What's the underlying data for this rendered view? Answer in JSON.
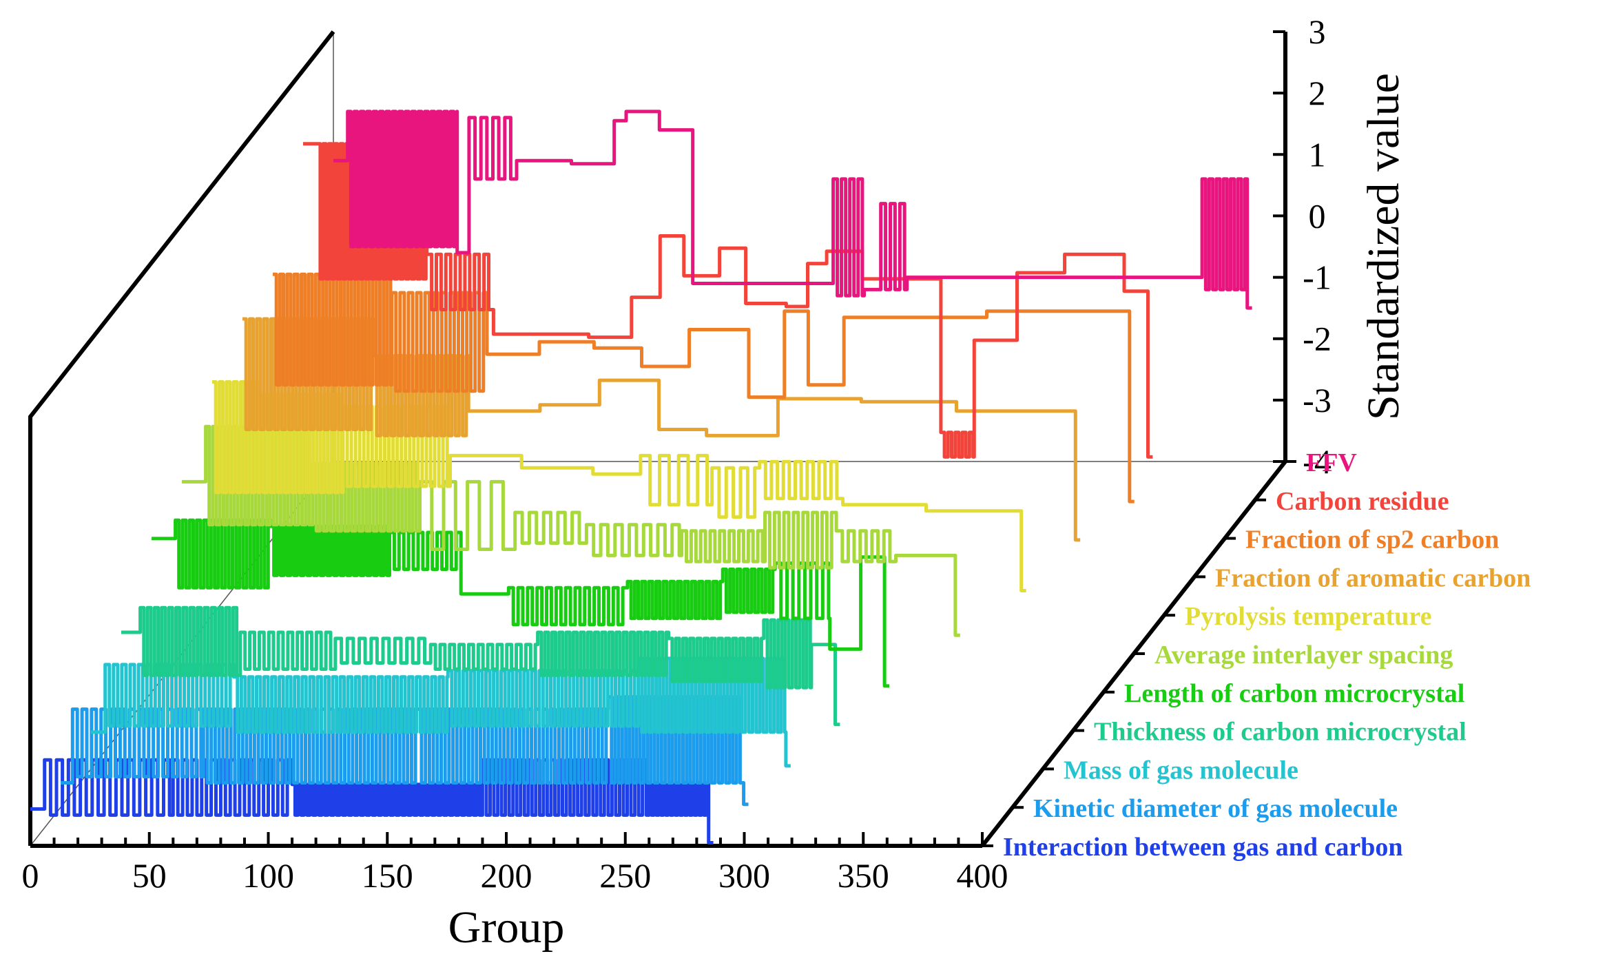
{
  "chart_data": {
    "type": "line",
    "style": "3d-waterfall",
    "title": "",
    "xlabel": "Group",
    "zlabel": "Standardized value",
    "xlim": [
      0,
      400
    ],
    "zlim": [
      -4,
      3
    ],
    "x_ticks": [
      "0",
      "50",
      "100",
      "150",
      "200",
      "250",
      "300",
      "350",
      "400"
    ],
    "z_ticks": [
      "3",
      "2",
      "1",
      "0",
      "-1",
      "-2",
      "-3",
      "-4"
    ],
    "series": [
      {
        "name": "FFV",
        "color": "#e8157e",
        "segments": [
          {
            "x0": 0,
            "x1": 6,
            "v": 0.9
          },
          {
            "x0": 6,
            "x1": 52,
            "osc": [
              -0.5,
              1.7
            ],
            "period": 2.7
          },
          {
            "x0": 52,
            "x1": 57,
            "v": -0.6
          },
          {
            "x0": 57,
            "x1": 77,
            "osc": [
              0.6,
              1.6
            ],
            "period": 5
          },
          {
            "x0": 77,
            "x1": 80,
            "v": 0.9
          },
          {
            "x0": 80,
            "x1": 100,
            "v": 0.9
          },
          {
            "x0": 100,
            "x1": 118,
            "v": 0.85
          },
          {
            "x0": 118,
            "x1": 123,
            "v": 1.55
          },
          {
            "x0": 123,
            "x1": 137,
            "v": 1.7
          },
          {
            "x0": 137,
            "x1": 151,
            "v": 1.4
          },
          {
            "x0": 151,
            "x1": 168,
            "v": -1.1
          },
          {
            "x0": 168,
            "x1": 210,
            "v": -1.1
          },
          {
            "x0": 210,
            "x1": 223,
            "osc": [
              -1.3,
              0.6
            ],
            "period": 3.5
          },
          {
            "x0": 223,
            "x1": 230,
            "v": -1.2
          },
          {
            "x0": 230,
            "x1": 241,
            "osc": [
              -1.2,
              0.2
            ],
            "period": 4
          },
          {
            "x0": 241,
            "x1": 365,
            "v": -1.0
          },
          {
            "x0": 365,
            "x1": 384,
            "osc": [
              -1.2,
              0.6
            ],
            "period": 3
          },
          {
            "x0": 384,
            "x1": 386,
            "v": -1.5
          }
        ]
      },
      {
        "name": "Carbon residue",
        "color": "#f2443a",
        "segments": [
          {
            "x0": 0,
            "x1": 6,
            "v": 1.8
          },
          {
            "x0": 6,
            "x1": 52,
            "osc": [
              -0.4,
              1.8
            ],
            "period": 2.4
          },
          {
            "x0": 52,
            "x1": 80,
            "osc": [
              -0.9,
              0.0
            ],
            "period": 4
          },
          {
            "x0": 80,
            "x1": 120,
            "v": -1.3
          },
          {
            "x0": 120,
            "x1": 138,
            "v": -1.35
          },
          {
            "x0": 138,
            "x1": 150,
            "v": -0.7
          },
          {
            "x0": 150,
            "x1": 160,
            "v": 0.3
          },
          {
            "x0": 160,
            "x1": 175,
            "v": -0.35
          },
          {
            "x0": 175,
            "x1": 186,
            "v": 0.1
          },
          {
            "x0": 186,
            "x1": 203,
            "v": -0.8
          },
          {
            "x0": 203,
            "x1": 212,
            "v": -0.85
          },
          {
            "x0": 212,
            "x1": 220,
            "v": -0.15
          },
          {
            "x0": 220,
            "x1": 235,
            "v": 0.05
          },
          {
            "x0": 235,
            "x1": 268,
            "v": -0.4
          },
          {
            "x0": 268,
            "x1": 282,
            "osc": [
              -3.3,
              -2.9
            ],
            "period": 3
          },
          {
            "x0": 282,
            "x1": 300,
            "v": -1.4
          },
          {
            "x0": 300,
            "x1": 320,
            "v": -0.3
          },
          {
            "x0": 320,
            "x1": 345,
            "v": 0.0
          },
          {
            "x0": 345,
            "x1": 355,
            "v": -0.6
          },
          {
            "x0": 355,
            "x1": 357,
            "v": -3.3
          }
        ]
      },
      {
        "name": "Fraction of sp2 carbon",
        "color": "#ee7f26",
        "segments": [
          {
            "x0": 0,
            "x1": 50,
            "osc": [
              -1.5,
              0.3
            ],
            "period": 3
          },
          {
            "x0": 50,
            "x1": 90,
            "osc": [
              -1.6,
              0.0
            ],
            "period": 3.5
          },
          {
            "x0": 90,
            "x1": 112,
            "v": -1.0
          },
          {
            "x0": 112,
            "x1": 135,
            "v": -0.8
          },
          {
            "x0": 135,
            "x1": 155,
            "v": -0.9
          },
          {
            "x0": 155,
            "x1": 175,
            "v": -1.2
          },
          {
            "x0": 175,
            "x1": 200,
            "v": -0.6
          },
          {
            "x0": 200,
            "x1": 215,
            "v": -1.7
          },
          {
            "x0": 215,
            "x1": 225,
            "v": -0.3
          },
          {
            "x0": 225,
            "x1": 240,
            "v": -1.5
          },
          {
            "x0": 240,
            "x1": 262,
            "v": -0.4
          },
          {
            "x0": 262,
            "x1": 300,
            "v": -0.4
          },
          {
            "x0": 300,
            "x1": 360,
            "v": -0.3
          },
          {
            "x0": 360,
            "x1": 362,
            "v": -3.4
          }
        ]
      },
      {
        "name": "Fraction of aromatic carbon",
        "color": "#e8a230",
        "segments": [
          {
            "x0": 0,
            "x1": 55,
            "osc": [
              -1.6,
              0.2
            ],
            "period": 3
          },
          {
            "x0": 55,
            "x1": 95,
            "osc": [
              -1.7,
              -0.4
            ],
            "period": 3
          },
          {
            "x0": 95,
            "x1": 125,
            "v": -1.3
          },
          {
            "x0": 125,
            "x1": 150,
            "v": -1.2
          },
          {
            "x0": 150,
            "x1": 175,
            "v": -0.8
          },
          {
            "x0": 175,
            "x1": 195,
            "v": -1.6
          },
          {
            "x0": 195,
            "x1": 225,
            "v": -1.7
          },
          {
            "x0": 225,
            "x1": 260,
            "v": -1.1
          },
          {
            "x0": 260,
            "x1": 300,
            "v": -1.15
          },
          {
            "x0": 300,
            "x1": 350,
            "v": -1.3
          },
          {
            "x0": 350,
            "x1": 352,
            "v": -3.4
          }
        ]
      },
      {
        "name": "Pyrolysis temperature",
        "color": "#e2dd36",
        "segments": [
          {
            "x0": 0,
            "x1": 20,
            "osc": [
              -2.0,
              -0.2
            ],
            "period": 3
          },
          {
            "x0": 20,
            "x1": 55,
            "osc": [
              -2.0,
              -0.4
            ],
            "period": 3
          },
          {
            "x0": 55,
            "x1": 100,
            "osc": [
              -1.9,
              -0.6
            ],
            "period": 3.5
          },
          {
            "x0": 100,
            "x1": 130,
            "v": -1.4
          },
          {
            "x0": 130,
            "x1": 160,
            "v": -1.6
          },
          {
            "x0": 160,
            "x1": 180,
            "v": -1.7
          },
          {
            "x0": 180,
            "x1": 210,
            "osc": [
              -2.2,
              -1.4
            ],
            "period": 8
          },
          {
            "x0": 210,
            "x1": 230,
            "osc": [
              -2.4,
              -1.6
            ],
            "period": 6
          },
          {
            "x0": 230,
            "x1": 265,
            "osc": [
              -2.1,
              -1.5
            ],
            "period": 5
          },
          {
            "x0": 265,
            "x1": 300,
            "v": -2.2
          },
          {
            "x0": 300,
            "x1": 340,
            "v": -2.3
          },
          {
            "x0": 340,
            "x1": 342,
            "v": -3.6
          }
        ]
      },
      {
        "name": "Average interlayer spacing",
        "color": "#a7d83c",
        "segments": [
          {
            "x0": 0,
            "x1": 10,
            "v": -1.2
          },
          {
            "x0": 10,
            "x1": 55,
            "osc": [
              -1.9,
              -0.3
            ],
            "period": 3
          },
          {
            "x0": 55,
            "x1": 100,
            "osc": [
              -2.0,
              -0.9
            ],
            "period": 3
          },
          {
            "x0": 100,
            "x1": 140,
            "osc": [
              -2.3,
              -1.2
            ],
            "period": 10
          },
          {
            "x0": 140,
            "x1": 170,
            "osc": [
              -2.2,
              -1.7
            ],
            "period": 6
          },
          {
            "x0": 170,
            "x1": 210,
            "osc": [
              -2.4,
              -1.9
            ],
            "period": 6
          },
          {
            "x0": 210,
            "x1": 245,
            "osc": [
              -2.5,
              -2.0
            ],
            "period": 4
          },
          {
            "x0": 245,
            "x1": 275,
            "osc": [
              -2.6,
              -1.7
            ],
            "period": 4
          },
          {
            "x0": 275,
            "x1": 300,
            "osc": [
              -2.5,
              -2.0
            ],
            "period": 5
          },
          {
            "x0": 300,
            "x1": 325,
            "v": -2.4
          },
          {
            "x0": 325,
            "x1": 327,
            "v": -3.7
          }
        ]
      },
      {
        "name": "Length of carbon microcrystal",
        "color": "#17cc11",
        "segments": [
          {
            "x0": 0,
            "x1": 10,
            "v": -1.5
          },
          {
            "x0": 10,
            "x1": 50,
            "osc": [
              -2.3,
              -1.2
            ],
            "period": 3
          },
          {
            "x0": 50,
            "x1": 100,
            "osc": [
              -2.1,
              -1.3
            ],
            "period": 2.8
          },
          {
            "x0": 100,
            "x1": 130,
            "osc": [
              -2.0,
              -1.4
            ],
            "period": 4
          },
          {
            "x0": 130,
            "x1": 150,
            "v": -2.4
          },
          {
            "x0": 150,
            "x1": 200,
            "osc": [
              -2.9,
              -2.3
            ],
            "period": 4
          },
          {
            "x0": 200,
            "x1": 240,
            "osc": [
              -2.8,
              -2.2
            ],
            "period": 3
          },
          {
            "x0": 240,
            "x1": 262,
            "osc": [
              -2.7,
              -2.0
            ],
            "period": 3
          },
          {
            "x0": 262,
            "x1": 285,
            "osc": [
              -2.8,
              -1.9
            ],
            "period": 5
          },
          {
            "x0": 285,
            "x1": 298,
            "v": -3.3
          },
          {
            "x0": 298,
            "x1": 308,
            "v": -1.8
          },
          {
            "x0": 308,
            "x1": 310,
            "v": -3.9
          }
        ]
      },
      {
        "name": "Thickness of carbon microcrystal",
        "color": "#1dcb8c",
        "segments": [
          {
            "x0": 0,
            "x1": 8,
            "v": -2.4
          },
          {
            "x0": 8,
            "x1": 50,
            "osc": [
              -3.1,
              -2.0
            ],
            "period": 3
          },
          {
            "x0": 50,
            "x1": 90,
            "osc": [
              -3.0,
              -2.4
            ],
            "period": 4
          },
          {
            "x0": 90,
            "x1": 130,
            "osc": [
              -2.9,
              -2.5
            ],
            "period": 5
          },
          {
            "x0": 130,
            "x1": 175,
            "osc": [
              -3.0,
              -2.6
            ],
            "period": 4
          },
          {
            "x0": 175,
            "x1": 230,
            "osc": [
              -3.1,
              -2.4
            ],
            "period": 3
          },
          {
            "x0": 230,
            "x1": 270,
            "osc": [
              -3.2,
              -2.5
            ],
            "period": 3
          },
          {
            "x0": 270,
            "x1": 290,
            "osc": [
              -3.3,
              -2.2
            ],
            "period": 3
          },
          {
            "x0": 290,
            "x1": 300,
            "v": -2.6
          },
          {
            "x0": 300,
            "x1": 302,
            "v": -3.9
          }
        ]
      },
      {
        "name": "Mass of gas molecule",
        "color": "#23c4cf",
        "segments": [
          {
            "x0": 0,
            "x1": 6,
            "v": -3.4
          },
          {
            "x0": 6,
            "x1": 60,
            "osc": [
              -3.3,
              -2.3
            ],
            "period": 3.5
          },
          {
            "x0": 60,
            "x1": 150,
            "osc": [
              -3.4,
              -2.5
            ],
            "period": 3.2
          },
          {
            "x0": 150,
            "x1": 230,
            "osc": [
              -3.3,
              -2.4
            ],
            "period": 3.2
          },
          {
            "x0": 230,
            "x1": 292,
            "osc": [
              -3.4,
              -2.2
            ],
            "period": 3
          },
          {
            "x0": 292,
            "x1": 294,
            "v": -3.95
          }
        ]
      },
      {
        "name": "Kinetic diameter of gas molecule",
        "color": "#1c9cec",
        "segments": [
          {
            "x0": 0,
            "x1": 5,
            "v": -3.6
          },
          {
            "x0": 5,
            "x1": 60,
            "osc": [
              -3.5,
              -2.4
            ],
            "period": 4
          },
          {
            "x0": 60,
            "x1": 150,
            "osc": [
              -3.6,
              -2.4
            ],
            "period": 3.3
          },
          {
            "x0": 150,
            "x1": 230,
            "osc": [
              -3.6,
              -2.4
            ],
            "period": 3.3
          },
          {
            "x0": 230,
            "x1": 287,
            "osc": [
              -3.6,
              -2.2
            ],
            "period": 3
          },
          {
            "x0": 287,
            "x1": 289,
            "v": -3.95
          }
        ]
      },
      {
        "name": "Interaction between gas and carbon",
        "color": "#1f3fe8",
        "segments": [
          {
            "x0": 0,
            "x1": 6,
            "v": -3.4
          },
          {
            "x0": 6,
            "x1": 60,
            "osc": [
              -3.5,
              -2.6
            ],
            "period": 5
          },
          {
            "x0": 60,
            "x1": 110,
            "osc": [
              -3.5,
              -2.6
            ],
            "period": 4
          },
          {
            "x0": 110,
            "x1": 150,
            "osc": [
              -3.5,
              -3.0
            ],
            "period": 2.5
          },
          {
            "x0": 150,
            "x1": 190,
            "osc": [
              -3.5,
              -3.0
            ],
            "period": 2.5
          },
          {
            "x0": 190,
            "x1": 260,
            "osc": [
              -3.5,
              -2.6
            ],
            "period": 3.2
          },
          {
            "x0": 260,
            "x1": 285,
            "osc": [
              -3.5,
              -3.0
            ],
            "period": 2
          },
          {
            "x0": 285,
            "x1": 287,
            "v": -3.95
          }
        ]
      }
    ]
  }
}
